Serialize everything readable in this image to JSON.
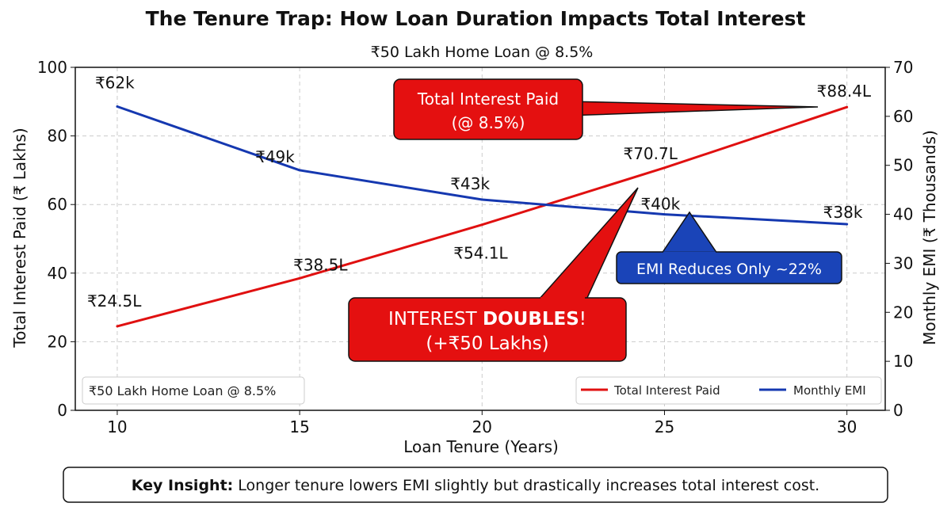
{
  "chart_data": {
    "type": "line",
    "title": "The Tenure Trap: How Loan Duration Impacts Total Interest",
    "subtitle": "₹50 Lakh Home Loan @ 8.5%",
    "xlabel": "Loan Tenure (Years)",
    "ylabel": "Total Interest Paid (₹ Lakhs)",
    "y2label": "Monthly EMI (₹ Thousands)",
    "xlim": [
      8.85,
      31.05
    ],
    "ylim": [
      0,
      100
    ],
    "y2lim": [
      0,
      70
    ],
    "xticks": [
      10,
      15,
      20,
      25,
      30
    ],
    "yticks": [
      0,
      20,
      40,
      60,
      80,
      100
    ],
    "y2ticks": [
      0,
      10,
      20,
      30,
      40,
      50,
      60,
      70
    ],
    "grid": true,
    "x": [
      10,
      15,
      20,
      25,
      30
    ],
    "series": [
      {
        "name": "Total Interest Paid",
        "axis": "left",
        "color": "#e01010",
        "values": [
          24.5,
          38.5,
          54.1,
          70.7,
          88.4
        ],
        "labels": [
          "₹24.5L",
          "₹38.5L",
          "₹54.1L",
          "₹70.7L",
          "₹88.4L"
        ]
      },
      {
        "name": "Monthly EMI",
        "axis": "right",
        "color": "#1538b0",
        "values": [
          62,
          49,
          43,
          40,
          38
        ],
        "labels": [
          "₹62k",
          "₹49k",
          "₹43k",
          "₹40k",
          "₹38k"
        ]
      }
    ],
    "legend_placement": "bottom-right",
    "info_box": "₹50 Lakh Home Loan @ 8.5%",
    "annotations": {
      "total_interest": {
        "line1": "Total Interest Paid",
        "line2": "(@ 8.5%)"
      },
      "doubles": {
        "line1_prefix": "INTEREST ",
        "line1_bold": "DOUBLES",
        "line1_suffix": "!",
        "line2": "(+₹50 Lakhs)"
      },
      "emi": {
        "text": "EMI Reduces Only ~22%"
      }
    },
    "key_insight": {
      "label": "Key Insight:",
      "text": " Longer tenure lowers EMI slightly but drastically increases total interest cost."
    }
  }
}
